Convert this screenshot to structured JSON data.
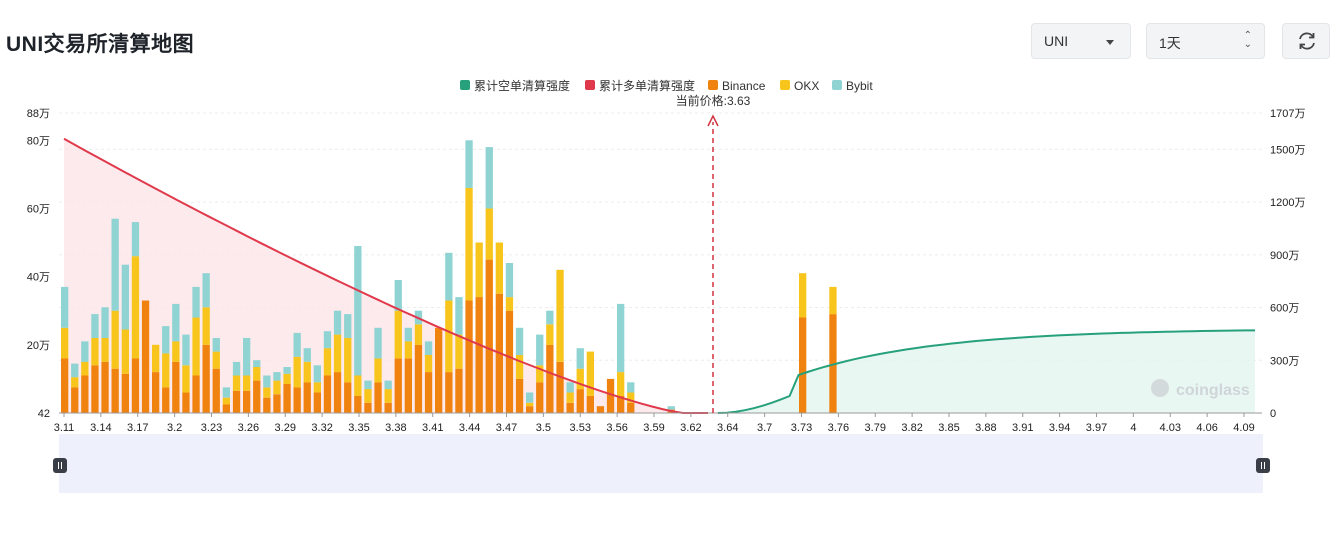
{
  "header": {
    "title": "UNI交易所清算地图",
    "coin_select": "UNI",
    "interval_select": "1天"
  },
  "colors": {
    "short_cum": "#26a17b",
    "long_cum": "#e0394b",
    "binance": "#f0820f",
    "okx": "#f7c51c",
    "bybit": "#8fd3d3"
  },
  "icons": {
    "refresh": "refresh-icon",
    "coin_caret": "caret-down-icon",
    "interval_arrows": "up-down-arrows-icon",
    "watermark": "coinglass-logo"
  },
  "watermark": "coinglass",
  "chart_data": {
    "type": "bar",
    "legend": [
      "累计空单清算强度",
      "累计多单清算强度",
      "Binance",
      "OKX",
      "Bybit"
    ],
    "legend_position": "top-center",
    "current_price_label": "当前价格:3.63",
    "current_price": 3.63,
    "x_tick_labels": [
      "3.11",
      "3.14",
      "3.17",
      "3.2",
      "3.23",
      "3.26",
      "3.29",
      "3.32",
      "3.35",
      "3.38",
      "3.41",
      "3.44",
      "3.47",
      "3.5",
      "3.53",
      "3.56",
      "3.59",
      "3.62",
      "3.64",
      "3.7",
      "3.73",
      "3.76",
      "3.79",
      "3.82",
      "3.85",
      "3.88",
      "3.91",
      "3.94",
      "3.97",
      "4",
      "4.03",
      "4.06",
      "4.09"
    ],
    "left_axis": {
      "ticks": [
        "42",
        "20万",
        "40万",
        "60万",
        "80万",
        "88万"
      ],
      "range": [
        0,
        880000
      ]
    },
    "right_axis": {
      "ticks": [
        "0",
        "300万",
        "600万",
        "900万",
        "1200万",
        "1500万",
        "1707万"
      ],
      "range": [
        0,
        17070000
      ]
    },
    "stacked_bars": [
      [
        160000,
        90000,
        120000
      ],
      [
        75000,
        30000,
        40000
      ],
      [
        110000,
        40000,
        60000
      ],
      [
        140000,
        80000,
        70000
      ],
      [
        150000,
        70000,
        90000
      ],
      [
        130000,
        170000,
        270000
      ],
      [
        115000,
        130000,
        190000
      ],
      [
        160000,
        300000,
        100000
      ],
      [
        330000,
        0,
        0
      ],
      [
        120000,
        80000,
        0
      ],
      [
        75000,
        100000,
        80000
      ],
      [
        150000,
        60000,
        110000
      ],
      [
        60000,
        80000,
        90000
      ],
      [
        110000,
        170000,
        90000
      ],
      [
        200000,
        110000,
        100000
      ],
      [
        130000,
        50000,
        40000
      ],
      [
        25000,
        20000,
        30000
      ],
      [
        65000,
        45000,
        40000
      ],
      [
        65000,
        45000,
        110000
      ],
      [
        95000,
        40000,
        20000
      ],
      [
        45000,
        30000,
        35000
      ],
      [
        55000,
        40000,
        25000
      ],
      [
        85000,
        30000,
        20000
      ],
      [
        75000,
        90000,
        70000
      ],
      [
        90000,
        60000,
        40000
      ],
      [
        60000,
        30000,
        50000
      ],
      [
        110000,
        80000,
        50000
      ],
      [
        120000,
        110000,
        70000
      ],
      [
        90000,
        130000,
        70000
      ],
      [
        50000,
        60000,
        380000
      ],
      [
        30000,
        40000,
        25000
      ],
      [
        90000,
        70000,
        90000
      ],
      [
        30000,
        40000,
        25000
      ],
      [
        160000,
        140000,
        90000
      ],
      [
        160000,
        50000,
        40000
      ],
      [
        200000,
        60000,
        40000
      ],
      [
        120000,
        50000,
        40000
      ],
      [
        250000,
        0,
        0
      ],
      [
        120000,
        210000,
        140000
      ],
      [
        130000,
        100000,
        110000
      ],
      [
        330000,
        330000,
        140000
      ],
      [
        340000,
        160000,
        0
      ],
      [
        450000,
        150000,
        180000
      ],
      [
        350000,
        150000,
        0
      ],
      [
        300000,
        40000,
        100000
      ],
      [
        100000,
        70000,
        80000
      ],
      [
        20000,
        10000,
        30000
      ],
      [
        90000,
        50000,
        90000
      ],
      [
        200000,
        60000,
        40000
      ],
      [
        150000,
        270000,
        0
      ],
      [
        30000,
        30000,
        30000
      ],
      [
        70000,
        60000,
        60000
      ],
      [
        50000,
        130000,
        0
      ],
      [
        20000,
        0,
        0
      ],
      [
        100000,
        0,
        0
      ],
      [
        50000,
        70000,
        200000
      ],
      [
        30000,
        30000,
        30000
      ],
      [
        0,
        0,
        0
      ],
      [
        0,
        0,
        0
      ],
      [
        0,
        0,
        0
      ],
      [
        10000,
        0,
        10000
      ],
      [
        0,
        0,
        0
      ],
      [
        0,
        0,
        0
      ],
      [
        0,
        0,
        0
      ],
      [
        0,
        0,
        0
      ],
      [
        0,
        0,
        0
      ],
      [
        0,
        0,
        0
      ],
      [
        0,
        0,
        0
      ],
      [
        0,
        0,
        0
      ],
      [
        0,
        0,
        0
      ],
      [
        0,
        0,
        0
      ],
      [
        0,
        0,
        0
      ],
      [
        0,
        0,
        0
      ],
      [
        280000,
        130000,
        0
      ],
      [
        0,
        0,
        0
      ],
      [
        0,
        0,
        0
      ],
      [
        290000,
        80000,
        0
      ],
      [
        0,
        0,
        0
      ],
      [
        0,
        0,
        0
      ],
      [
        0,
        0,
        0
      ],
      [
        0,
        0,
        0
      ],
      [
        0,
        0,
        0
      ],
      [
        0,
        0,
        0
      ],
      [
        0,
        0,
        0
      ],
      [
        0,
        0,
        0
      ]
    ]
  }
}
